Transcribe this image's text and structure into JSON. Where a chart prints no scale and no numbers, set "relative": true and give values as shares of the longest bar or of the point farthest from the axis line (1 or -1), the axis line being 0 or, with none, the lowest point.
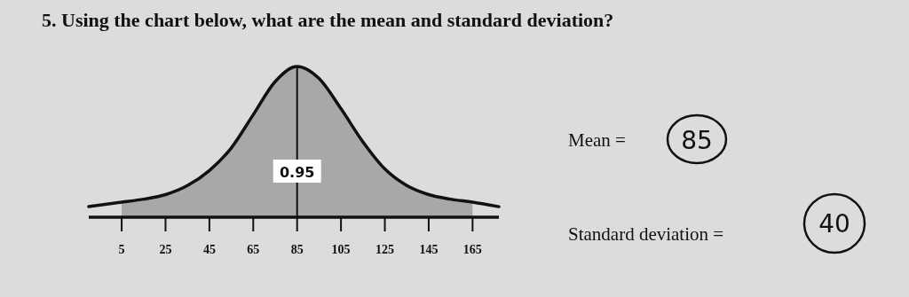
{
  "chart_data": {
    "type": "line",
    "relative": true,
    "title": "5. Using the chart below, what are the mean and standard deviation?",
    "xlim": [
      -10,
      177
    ],
    "xticks": [
      5,
      25,
      45,
      65,
      85,
      105,
      125,
      145,
      165
    ],
    "series": [
      {
        "type": "area",
        "color": "#a8a8a8",
        "x": [
          5,
          15,
          25,
          35,
          45,
          55,
          65,
          75,
          85,
          95,
          105,
          115,
          125,
          135,
          145,
          155,
          165
        ],
        "values": [
          0.1,
          0.12,
          0.15,
          0.21,
          0.31,
          0.46,
          0.68,
          0.9,
          1,
          0.92,
          0.72,
          0.5,
          0.32,
          0.21,
          0.15,
          0.12,
          0.1
        ]
      },
      {
        "color": "#111111",
        "x": [
          -10,
          5,
          15,
          25,
          35,
          45,
          55,
          65,
          75,
          85,
          95,
          105,
          115,
          125,
          135,
          145,
          155,
          165,
          177
        ],
        "values": [
          0.07,
          0.1,
          0.12,
          0.15,
          0.21,
          0.31,
          0.46,
          0.68,
          0.9,
          1,
          0.92,
          0.72,
          0.5,
          0.32,
          0.21,
          0.15,
          0.12,
          0.1,
          0.07
        ]
      }
    ],
    "ref_lines": [
      {
        "axis": "x",
        "value": 85,
        "color": "#111111"
      }
    ],
    "annotations": [
      {
        "text": "0.95",
        "x": 85,
        "y": 0.3
      },
      "Mean =",
      "85",
      "Standard deviation =",
      "40"
    ]
  }
}
